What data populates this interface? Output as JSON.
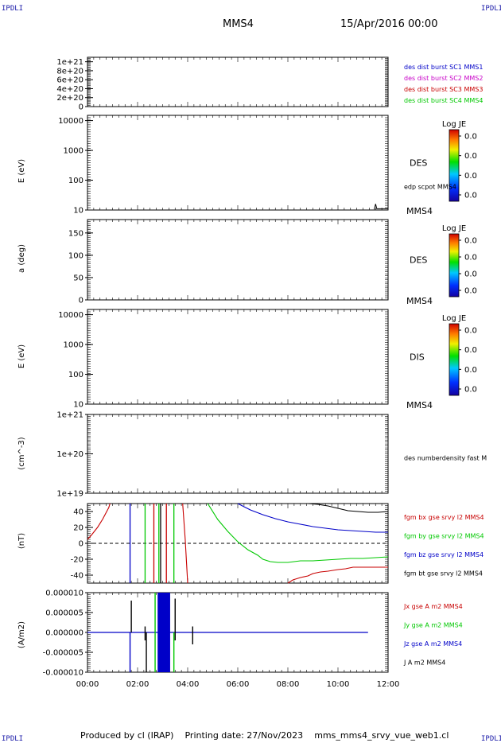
{
  "header": {
    "corner_label": "IPDLI",
    "spacecraft": "MMS4",
    "date_time": "15/Apr/2016 00:00"
  },
  "footer": {
    "producer": "Produced by cl (IRAP)",
    "printing_date": "Printing date: 27/Nov/2023",
    "script_name": "mms_mms4_srvy_vue_web1.cl"
  },
  "colors": {
    "blue": "#0000c8",
    "magenta": "#c800c8",
    "red": "#c80000",
    "green": "#00c800",
    "black": "#000000"
  },
  "chart_data": [
    {
      "type": "line",
      "panel": "burst-flags",
      "y_ticks": [
        "1e+21",
        "8e+20",
        "6e+20",
        "4e+20",
        "2e+20",
        "0"
      ],
      "ylim": [
        0,
        1.1e+21
      ],
      "dashed_zero_line": true,
      "legend": [
        {
          "text": "des dist burst SC1 MMS1",
          "color": "#0000c8"
        },
        {
          "text": "des dist burst SC2 MMS2",
          "color": "#c800c8"
        },
        {
          "text": "des dist burst SC3 MMS3",
          "color": "#c80000"
        },
        {
          "text": "des dist burst SC4 MMS4",
          "color": "#00c800"
        }
      ]
    },
    {
      "type": "heatmap",
      "panel": "des-energy",
      "ylabel": "E (eV)",
      "log_y": true,
      "ylim": [
        10,
        15000
      ],
      "y_ticks": [
        "10000",
        "1000",
        "100",
        "10"
      ],
      "y_tick_values": [
        10000,
        1000,
        100,
        10
      ],
      "right_label": "DES",
      "overlay_label": "edp scpot MMS4",
      "spacecraft_label": "MMS4",
      "colorbar": {
        "title": "Log JE",
        "ticks": [
          "0.0",
          "0.0",
          "0.0",
          "0.0"
        ]
      },
      "scpot_series": {
        "x_hours": [
          11.45,
          11.5,
          11.55,
          12.0
        ],
        "y": [
          10.5,
          16,
          11,
          11
        ]
      }
    },
    {
      "type": "heatmap",
      "panel": "des-pitch-angle",
      "ylabel": "a (deg)",
      "ylim": [
        0,
        180
      ],
      "y_ticks": [
        "150",
        "100",
        "50",
        "0"
      ],
      "y_tick_values": [
        150,
        100,
        50,
        0
      ],
      "right_label": "DES",
      "spacecraft_label": "MMS4",
      "colorbar": {
        "title": "Log JE",
        "ticks": [
          "0.0",
          "0.0",
          "0.0",
          "0.0"
        ]
      }
    },
    {
      "type": "heatmap",
      "panel": "dis-energy",
      "ylabel": "E (eV)",
      "log_y": true,
      "ylim": [
        10,
        15000
      ],
      "y_ticks": [
        "10000",
        "1000",
        "100",
        "10"
      ],
      "y_tick_values": [
        10000,
        1000,
        100,
        10
      ],
      "right_label": "DIS",
      "spacecraft_label": "MMS4",
      "colorbar": {
        "title": "Log JE",
        "ticks": [
          "0.0",
          "0.0",
          "0.0",
          "0.0"
        ]
      }
    },
    {
      "type": "line",
      "panel": "density",
      "ylabel": "(cm^-3)",
      "log_y": true,
      "ylim": [
        1e+19,
        1e+21
      ],
      "y_ticks": [
        "1e+21",
        "1e+20",
        "1e+19"
      ],
      "y_tick_values": [
        1e+21,
        1e+20,
        1e+19
      ],
      "legend": [
        {
          "text": "des numberdensity fast M",
          "color": "#000000"
        }
      ]
    },
    {
      "type": "line",
      "panel": "fgm",
      "ylabel": "(nT)",
      "ylim": [
        -50,
        50
      ],
      "y_ticks": [
        "40",
        "20",
        "0",
        "-20",
        "-40"
      ],
      "y_tick_values": [
        40,
        20,
        0,
        -20,
        -40
      ],
      "dashed_zero_line": true,
      "legend": [
        {
          "text": "fgm bx gse srvy l2 MMS4",
          "color": "#c80000"
        },
        {
          "text": "fgm by gse srvy l2 MMS4",
          "color": "#00c800"
        },
        {
          "text": "fgm bz gse srvy l2 MMS4",
          "color": "#0000c8"
        },
        {
          "text": "fgm bt gse srvy l2 MMS4",
          "color": "#000000"
        }
      ],
      "series": [
        {
          "name": "fgm bx gse srvy l2 MMS4",
          "color": "#c80000",
          "x_hours": [
            0.0,
            0.15,
            0.4,
            0.6,
            0.85,
            0.9
          ],
          "y": [
            5,
            10,
            20,
            30,
            45,
            50
          ]
        },
        {
          "name": "fgm bx gse srvy l2 MMS4",
          "color": "#c80000",
          "x_hours": [
            3.8,
            3.9,
            4.0
          ],
          "y": [
            50,
            5,
            -50
          ]
        },
        {
          "name": "fgm bx gse srvy l2 MMS4",
          "color": "#c80000",
          "x_hours": [
            8.0,
            8.2,
            8.5,
            8.8,
            9.0,
            9.3,
            9.6,
            10.0,
            10.3,
            10.6,
            11.0,
            11.5,
            12.0
          ],
          "y": [
            -50,
            -46,
            -43,
            -41,
            -38,
            -36,
            -35,
            -33,
            -32,
            -30,
            -30,
            -30,
            -30
          ]
        },
        {
          "name": "fgm by gse srvy l2 MMS4",
          "color": "#00c800",
          "x_hours": [
            4.8,
            5.2,
            5.6,
            6.0,
            6.4,
            6.8,
            7.0,
            7.3,
            7.6,
            8.0,
            8.5,
            9.0,
            9.5,
            10.0,
            10.5,
            11.0,
            11.5,
            12.0
          ],
          "y": [
            50,
            30,
            15,
            2,
            -8,
            -15,
            -20,
            -23,
            -24,
            -24,
            -22,
            -22,
            -21,
            -20,
            -19,
            -19,
            -18,
            -17
          ]
        },
        {
          "name": "fgm bz gse srvy l2 MMS4",
          "color": "#0000c8",
          "x_hours": [
            6.0,
            6.5,
            7.0,
            7.5,
            8.0,
            8.5,
            9.0,
            9.5,
            10.0,
            10.5,
            11.0,
            11.5,
            12.0
          ],
          "y": [
            50,
            42,
            36,
            31,
            27,
            24,
            21,
            19,
            17,
            16,
            15,
            14,
            14
          ]
        },
        {
          "name": "fgm bt gse srvy l2 MMS4",
          "color": "#000000",
          "x_hours": [
            8.4,
            8.8,
            9.2,
            9.6,
            10.0,
            10.4,
            10.8,
            11.2,
            11.6,
            12.0
          ],
          "y": [
            50,
            50,
            49,
            47,
            44,
            41,
            40,
            39,
            39,
            40
          ]
        }
      ],
      "vertical_lines": [
        {
          "x_hours": 1.7,
          "color": "#0000c8"
        },
        {
          "x_hours": 2.3,
          "color": "#00c800"
        },
        {
          "x_hours": 2.65,
          "color": "#c80000"
        },
        {
          "x_hours": 2.85,
          "color": "#00c800"
        },
        {
          "x_hours": 2.92,
          "color": "#000000"
        },
        {
          "x_hours": 3.15,
          "color": "#c80000"
        },
        {
          "x_hours": 3.45,
          "color": "#00c800"
        }
      ]
    },
    {
      "type": "line",
      "panel": "current-density",
      "ylabel": "(A/m2)",
      "ylim": [
        -1e-05,
        1e-05
      ],
      "y_ticks": [
        "0.000010",
        "0.000005",
        "0.000000",
        "-0.000005",
        "-0.000010"
      ],
      "y_tick_values": [
        1e-05,
        5e-06,
        0,
        -5e-06,
        -1e-05
      ],
      "x_ticks": [
        "00:00",
        "02:00",
        "04:00",
        "06:00",
        "08:00",
        "10:00",
        "12:00"
      ],
      "xlim_hours": [
        0,
        12
      ],
      "legend": [
        {
          "text": "Jx gse A m2 MMS4",
          "color": "#c80000"
        },
        {
          "text": "Jy gse A m2 MMS4",
          "color": "#00c800"
        },
        {
          "text": "Jz gse A m2 MMS4",
          "color": "#0000c8"
        },
        {
          "text": "J A m2 MMS4",
          "color": "#000000"
        }
      ],
      "baseline": {
        "x_hours": [
          0,
          11.2
        ],
        "y": [
          0,
          0
        ],
        "color": "#0000c8"
      },
      "active_interval": {
        "x_start_hours": 2.8,
        "x_end_hours": 3.3,
        "color": "#0000c8"
      },
      "spikes": [
        {
          "x_hours": 1.7,
          "color": "#0000c8",
          "y_min": -1e-05,
          "y_max": 0.0
        },
        {
          "x_hours": 1.75,
          "color": "#000000",
          "y_min": 0.0,
          "y_max": 8e-06
        },
        {
          "x_hours": 2.3,
          "color": "#000000",
          "y_min": -2e-06,
          "y_max": 1.5e-06
        },
        {
          "x_hours": 2.35,
          "color": "#000000",
          "y_min": -1e-05,
          "y_max": 0.0
        },
        {
          "x_hours": 2.7,
          "color": "#00c800",
          "y_min": -1e-05,
          "y_max": 1e-05
        },
        {
          "x_hours": 3.45,
          "color": "#00c800",
          "y_min": -1e-05,
          "y_max": 0.0
        },
        {
          "x_hours": 3.5,
          "color": "#000000",
          "y_min": -2e-06,
          "y_max": 8.5e-06
        },
        {
          "x_hours": 4.2,
          "color": "#000000",
          "y_min": -3e-06,
          "y_max": 1.5e-06
        }
      ]
    }
  ]
}
